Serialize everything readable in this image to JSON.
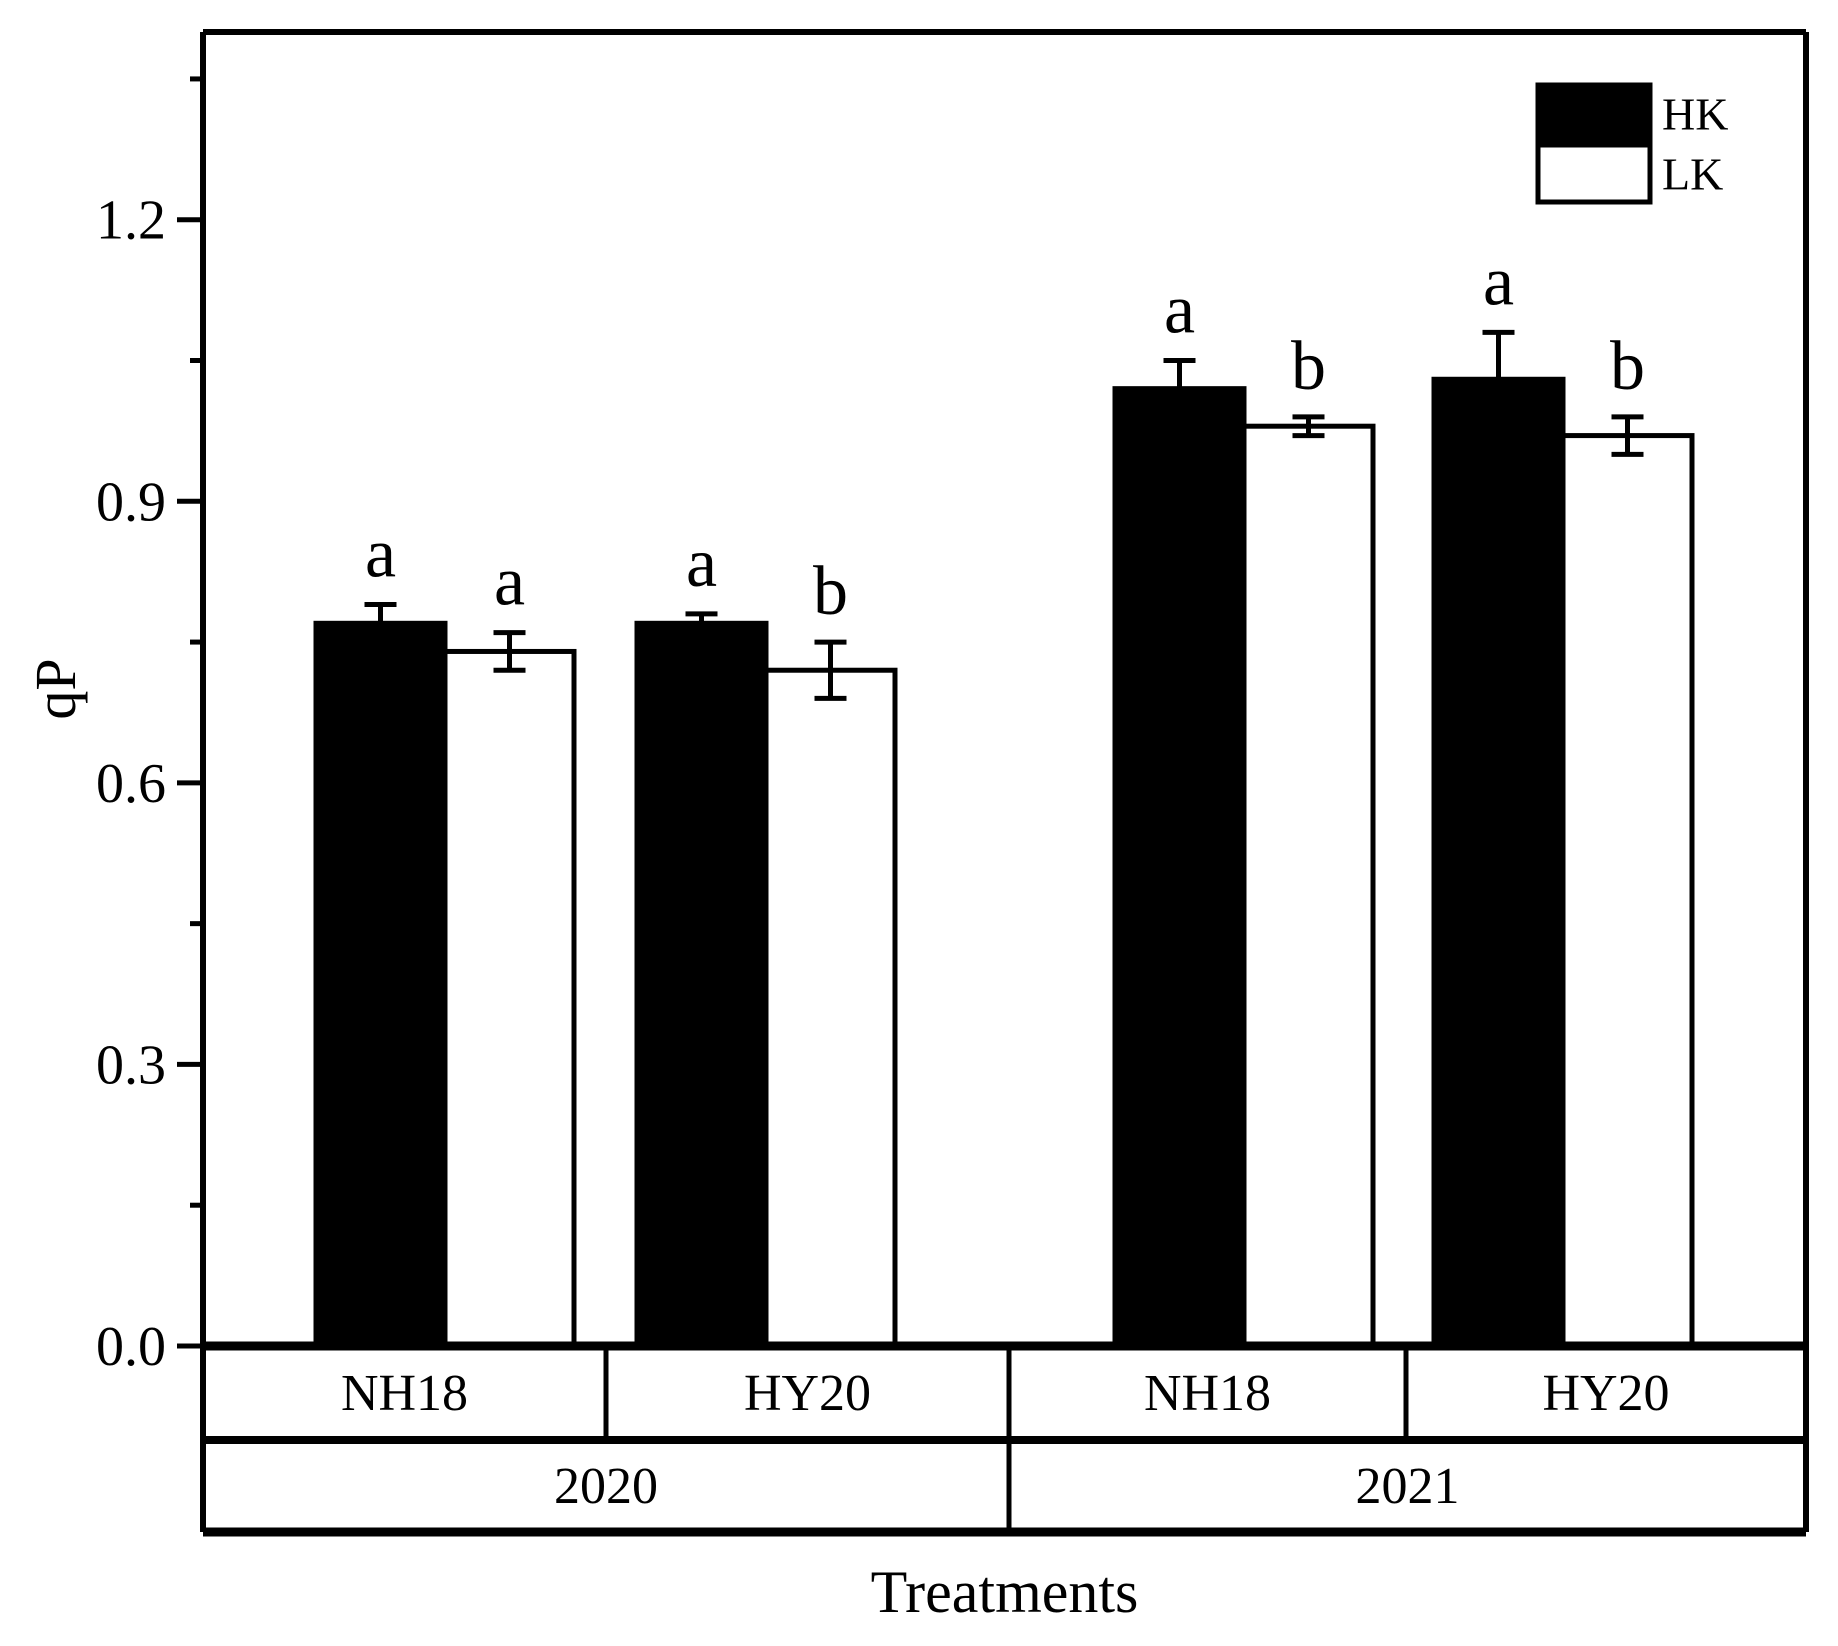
{
  "chart_data": {
    "type": "bar",
    "title": "",
    "ylabel": "qP",
    "xlabel": "Treatments",
    "ylim": [
      0,
      1.4
    ],
    "ytick_labels": [
      "0.0",
      "0.3",
      "0.6",
      "0.9",
      "1.2"
    ],
    "ytick_values": [
      0,
      0.3,
      0.6,
      0.9,
      1.2
    ],
    "minor_tick_values": [
      0.15,
      0.45,
      0.75,
      1.05,
      1.35
    ],
    "grid": false,
    "legend_position": "top-right",
    "categories": [
      {
        "cultivar": "NH18",
        "year": "2020"
      },
      {
        "cultivar": "HY20",
        "year": "2020"
      },
      {
        "cultivar": "NH18",
        "year": "2021"
      },
      {
        "cultivar": "HY20",
        "year": "2021"
      }
    ],
    "year_groups": [
      "2020",
      "2021"
    ],
    "series": [
      {
        "name": "HK",
        "fill": "#000000",
        "values": [
          0.77,
          0.77,
          1.02,
          1.03
        ],
        "errors": [
          0.02,
          0.01,
          0.03,
          0.05
        ],
        "sig_letters": [
          "a",
          "a",
          "a",
          "a"
        ]
      },
      {
        "name": "LK",
        "fill": "#ffffff",
        "values": [
          0.74,
          0.72,
          0.98,
          0.97
        ],
        "errors": [
          0.02,
          0.03,
          0.01,
          0.02
        ],
        "sig_letters": [
          "a",
          "b",
          "b",
          "b"
        ]
      }
    ],
    "colors": {
      "foreground": "#000000",
      "background": "#ffffff"
    }
  }
}
